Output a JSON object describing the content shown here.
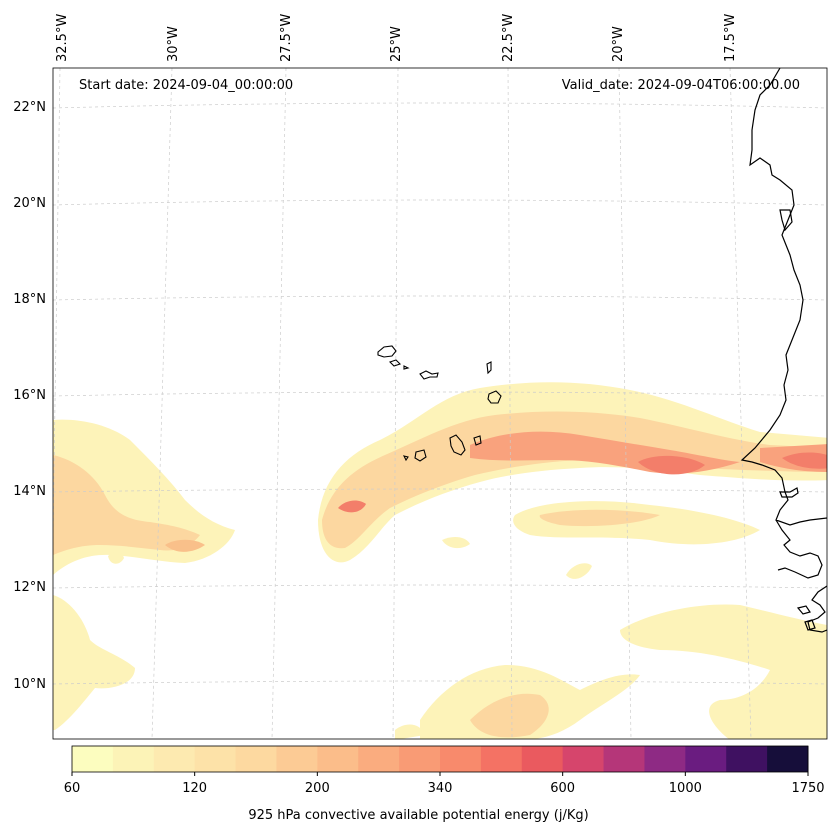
{
  "map": {
    "start_date": "Start date: 2024-09-04_00:00:00",
    "valid_date": "Valid_date: 2024-09-04T06:00:00.00",
    "lon_labels": [
      "32.5°W",
      "30°W",
      "27.5°W",
      "25°W",
      "22.5°W",
      "20°W",
      "17.5°W"
    ],
    "lat_labels": [
      "22°N",
      "20°N",
      "18°N",
      "16°N",
      "14°N",
      "12°N",
      "10°N"
    ],
    "field": "925 hPa convective available potential energy",
    "colors": {
      "coast": "#000000",
      "grid": "#cccccc",
      "low": "#fdf3b9",
      "mid": "#fcd7a0",
      "high": "#f9a27d",
      "peak": "#f37e6a"
    }
  },
  "colorbar": {
    "title": "925 hPa convective available potential energy (j/Kg)",
    "tick_labels": [
      "60",
      "120",
      "200",
      "340",
      "600",
      "1000",
      "1750"
    ],
    "colors": [
      "#fcfdbf",
      "#fcf3b7",
      "#fdeab0",
      "#fde2a8",
      "#fdd9a0",
      "#fccb95",
      "#fbbd8a",
      "#faac7f",
      "#f99b75",
      "#f88a6c",
      "#f47264",
      "#ea5a5f",
      "#d6456c",
      "#b53679",
      "#8e2a84",
      "#6a1c80",
      "#3f1161",
      "#160e3a"
    ]
  }
}
